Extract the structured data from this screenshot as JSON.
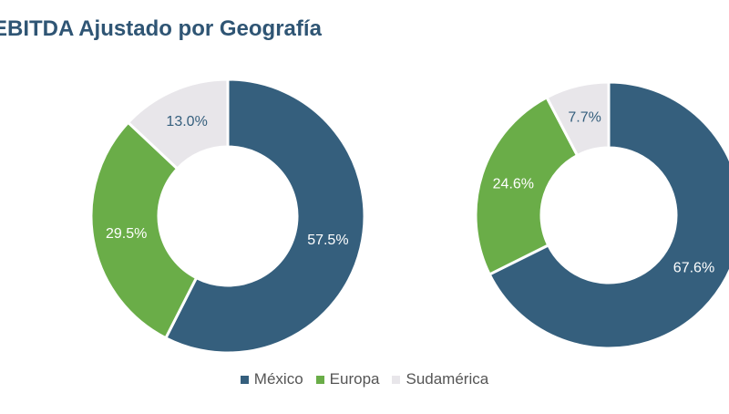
{
  "title": "EBITDA Ajustado por Geografía",
  "colors": {
    "mexico": "#355f7d",
    "europa": "#6aad48",
    "sudamerica": "#e8e6ea"
  },
  "legend": [
    {
      "label": "México",
      "color": "#355f7d"
    },
    {
      "label": "Europa",
      "color": "#6aad48"
    },
    {
      "label": "Sudamérica",
      "color": "#e8e6ea"
    }
  ],
  "chart_data": [
    {
      "type": "pie",
      "hole": true,
      "categories": [
        "México",
        "Europa",
        "Sudamérica"
      ],
      "values": [
        57.5,
        29.5,
        13.0
      ],
      "labels": [
        "57.5%",
        "29.5%",
        "13.0%"
      ]
    },
    {
      "type": "pie",
      "hole": true,
      "categories": [
        "México",
        "Europa",
        "Sudamérica"
      ],
      "values": [
        67.6,
        24.6,
        7.7
      ],
      "labels": [
        "67.6%",
        "24.6%",
        "7.7%"
      ]
    }
  ]
}
